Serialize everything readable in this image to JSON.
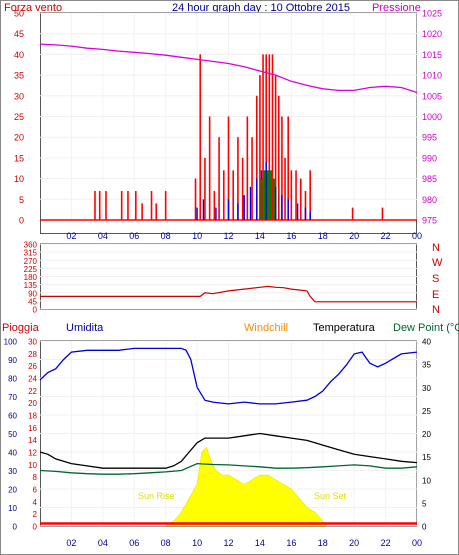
{
  "header": {
    "left_label": "Forza vento",
    "title": "24 hour graph day : 10 Ottobre 2015",
    "right_label": "Pressione"
  },
  "panel2": {
    "right_labels": [
      "N",
      "W",
      "S",
      "E",
      "N"
    ]
  },
  "panel3": {
    "labels": [
      "Pioggia",
      "Umidita",
      "Windchill",
      "Temperatura",
      "Dew Point (°C"
    ],
    "sun_rise": "Sun Rise",
    "sun_set": "Sun Set"
  },
  "colors": {
    "wind": "#ff0000",
    "gust": "#0000ff",
    "wind_avg": "#008000",
    "pressure": "#dd00dd",
    "direction": "#cc0000",
    "humidity": "#0000dd",
    "temperature": "#000000",
    "dew_point": "#006633",
    "solar": "#ffff00",
    "rain": "#ff0000",
    "windchill": "#ff8c00",
    "axis_red": "#cc0000",
    "axis_blue": "#000099",
    "axis_magenta": "#cc00cc",
    "axis_black": "#000000"
  },
  "chart_data": [
    {
      "type": "bar",
      "name": "wind_pressure",
      "x_ticks": [
        "02",
        "04",
        "06",
        "08",
        "10",
        "12",
        "14",
        "16",
        "18",
        "20",
        "22",
        "00"
      ],
      "ylim_left": [
        0,
        50
      ],
      "yticks_left": [
        0,
        5,
        10,
        15,
        20,
        25,
        30,
        35,
        40,
        45,
        50
      ],
      "ylim_right": [
        975,
        1025
      ],
      "yticks_right": [
        975,
        980,
        985,
        990,
        995,
        1000,
        1005,
        1010,
        1015,
        1020,
        1025
      ],
      "pressure": {
        "x": [
          0,
          1,
          2,
          3,
          4,
          5,
          6,
          7,
          8,
          9,
          10,
          11,
          12,
          13,
          14,
          15,
          16,
          17,
          18,
          19,
          20,
          21,
          22,
          23,
          24
        ],
        "y": [
          1017.5,
          1017.3,
          1017,
          1016.5,
          1016.2,
          1015.8,
          1015.5,
          1015.2,
          1014.8,
          1014.3,
          1013.8,
          1013.3,
          1012.8,
          1012,
          1011,
          1010,
          1008.5,
          1007.5,
          1006.7,
          1006.3,
          1006.3,
          1007,
          1007.3,
          1007,
          1005.8
        ]
      },
      "wind_spikes": {
        "x": [
          3.5,
          3.8,
          4.2,
          5.2,
          5.6,
          6.1,
          6.5,
          7.1,
          7.4,
          8.0,
          9.9,
          10.2,
          10.5,
          10.8,
          11.1,
          11.4,
          11.7,
          12.0,
          12.3,
          12.6,
          12.9,
          13.2,
          13.5,
          13.8,
          14.0,
          14.2,
          14.4,
          14.6,
          14.8,
          15.0,
          15.2,
          15.4,
          15.6,
          15.8,
          16.0,
          16.3,
          16.6,
          16.9,
          17.2,
          19.9,
          21.8
        ],
        "y": [
          7,
          7,
          7,
          7,
          7,
          7,
          4,
          7,
          4,
          7,
          10,
          40,
          15,
          25,
          7,
          20,
          12,
          25,
          12,
          20,
          15,
          25,
          20,
          30,
          35,
          40,
          40,
          40,
          40,
          35,
          30,
          25,
          15,
          25,
          12,
          12,
          10,
          7,
          12,
          3,
          3
        ]
      },
      "gust_spikes": {
        "x": [
          10.0,
          10.4,
          11.2,
          12.0,
          12.6,
          13.0,
          13.4,
          13.8,
          14.1,
          14.4,
          14.7,
          15.0,
          15.4,
          15.8,
          16.4,
          16.9,
          17.2
        ],
        "y": [
          3,
          5,
          3,
          5,
          4,
          6,
          8,
          10,
          12,
          14,
          10,
          8,
          6,
          5,
          4,
          3,
          2
        ]
      },
      "wind_avg_spikes": {
        "x": [
          14.1,
          14.3,
          14.5,
          14.7,
          14.9
        ],
        "y": [
          10,
          12,
          12,
          12,
          10
        ]
      }
    },
    {
      "type": "line",
      "name": "wind_direction",
      "yticks": [
        0,
        45,
        90,
        135,
        180,
        225,
        270,
        315,
        360
      ],
      "ylim": [
        0,
        360
      ],
      "x": [
        0,
        1,
        2,
        3,
        4,
        5,
        6,
        7,
        8,
        9,
        9.6,
        10.2,
        10.5,
        11,
        12,
        13,
        13.5,
        14,
        14.5,
        15,
        15.5,
        16,
        16.5,
        17,
        17.2,
        17.5,
        18,
        19,
        20,
        21,
        22,
        23,
        24
      ],
      "y": [
        70,
        70,
        70,
        70,
        70,
        70,
        70,
        70,
        70,
        70,
        70,
        70,
        90,
        85,
        100,
        110,
        115,
        120,
        125,
        120,
        118,
        110,
        105,
        100,
        70,
        40,
        40,
        40,
        40,
        40,
        40,
        40,
        40
      ]
    },
    {
      "type": "line",
      "name": "weather",
      "ylim_hum": [
        0,
        100
      ],
      "yticks_hum": [
        0,
        10,
        20,
        30,
        40,
        50,
        60,
        70,
        80,
        90,
        100
      ],
      "ylim_rain": [
        0,
        30
      ],
      "yticks_rain": [
        0,
        2,
        4,
        6,
        8,
        10,
        12,
        14,
        16,
        18,
        20,
        22,
        24,
        26,
        28,
        30
      ],
      "ylim_temp": [
        0,
        40
      ],
      "yticks_temp": [
        0,
        5,
        10,
        15,
        20,
        25,
        30,
        35,
        40
      ],
      "humidity": {
        "x": [
          0,
          0.5,
          1,
          1.5,
          2,
          3,
          4,
          5,
          6,
          7,
          8,
          9,
          9.3,
          9.6,
          10,
          10.5,
          11,
          12,
          13,
          14,
          15,
          16,
          17,
          17.5,
          18,
          18.5,
          19,
          19.5,
          20,
          20.5,
          21,
          21.5,
          22,
          23,
          24
        ],
        "y": [
          79,
          83,
          85,
          90,
          94,
          95,
          95,
          95,
          96,
          96,
          96,
          96,
          95,
          90,
          75,
          68,
          67,
          66,
          67,
          66,
          66,
          67,
          68,
          70,
          73,
          78,
          82,
          87,
          93,
          94,
          88,
          86,
          88,
          93,
          94
        ]
      },
      "temperature": {
        "x": [
          0,
          0.5,
          1,
          2,
          3,
          4,
          5,
          6,
          7,
          8,
          8.5,
          9,
          9.5,
          10,
          10.5,
          11,
          12,
          13,
          14,
          15,
          16,
          17,
          18,
          19,
          20,
          21,
          22,
          23,
          24
        ],
        "y": [
          16,
          15.5,
          14.5,
          13.5,
          13,
          12.5,
          12.5,
          12.5,
          12.5,
          12.5,
          13,
          14,
          16,
          18,
          19,
          19,
          19,
          19.5,
          20,
          19.5,
          19,
          18.5,
          17.5,
          16.5,
          15.5,
          15,
          14.5,
          14,
          13.7
        ]
      },
      "dew_point": {
        "x": [
          0,
          1,
          2,
          3,
          4,
          5,
          6,
          7,
          8,
          9,
          10,
          11,
          12,
          13,
          14,
          15,
          16,
          17,
          18,
          19,
          20,
          21,
          22,
          23,
          24
        ],
        "y": [
          12,
          11.8,
          11.5,
          11.3,
          11.2,
          11.2,
          11.3,
          11.5,
          11.7,
          12,
          13.5,
          13.3,
          13.2,
          13,
          12.8,
          12.5,
          12.5,
          12.6,
          12.8,
          13,
          13.2,
          13,
          12.5,
          12.5,
          12.8
        ]
      },
      "solar": {
        "x": [
          8,
          8.5,
          9,
          9.5,
          10,
          10.3,
          10.6,
          10.9,
          11.2,
          11.6,
          12,
          12.5,
          13,
          13.5,
          14,
          14.5,
          15,
          15.5,
          16,
          16.5,
          17,
          17.5,
          18,
          18.2
        ],
        "y": [
          0,
          1,
          3,
          6,
          9,
          16,
          17,
          14,
          12,
          11,
          11,
          10,
          9,
          10,
          11,
          11,
          10,
          9,
          8,
          6,
          4,
          3,
          1,
          0
        ]
      },
      "rain_level": 0.4
    }
  ]
}
